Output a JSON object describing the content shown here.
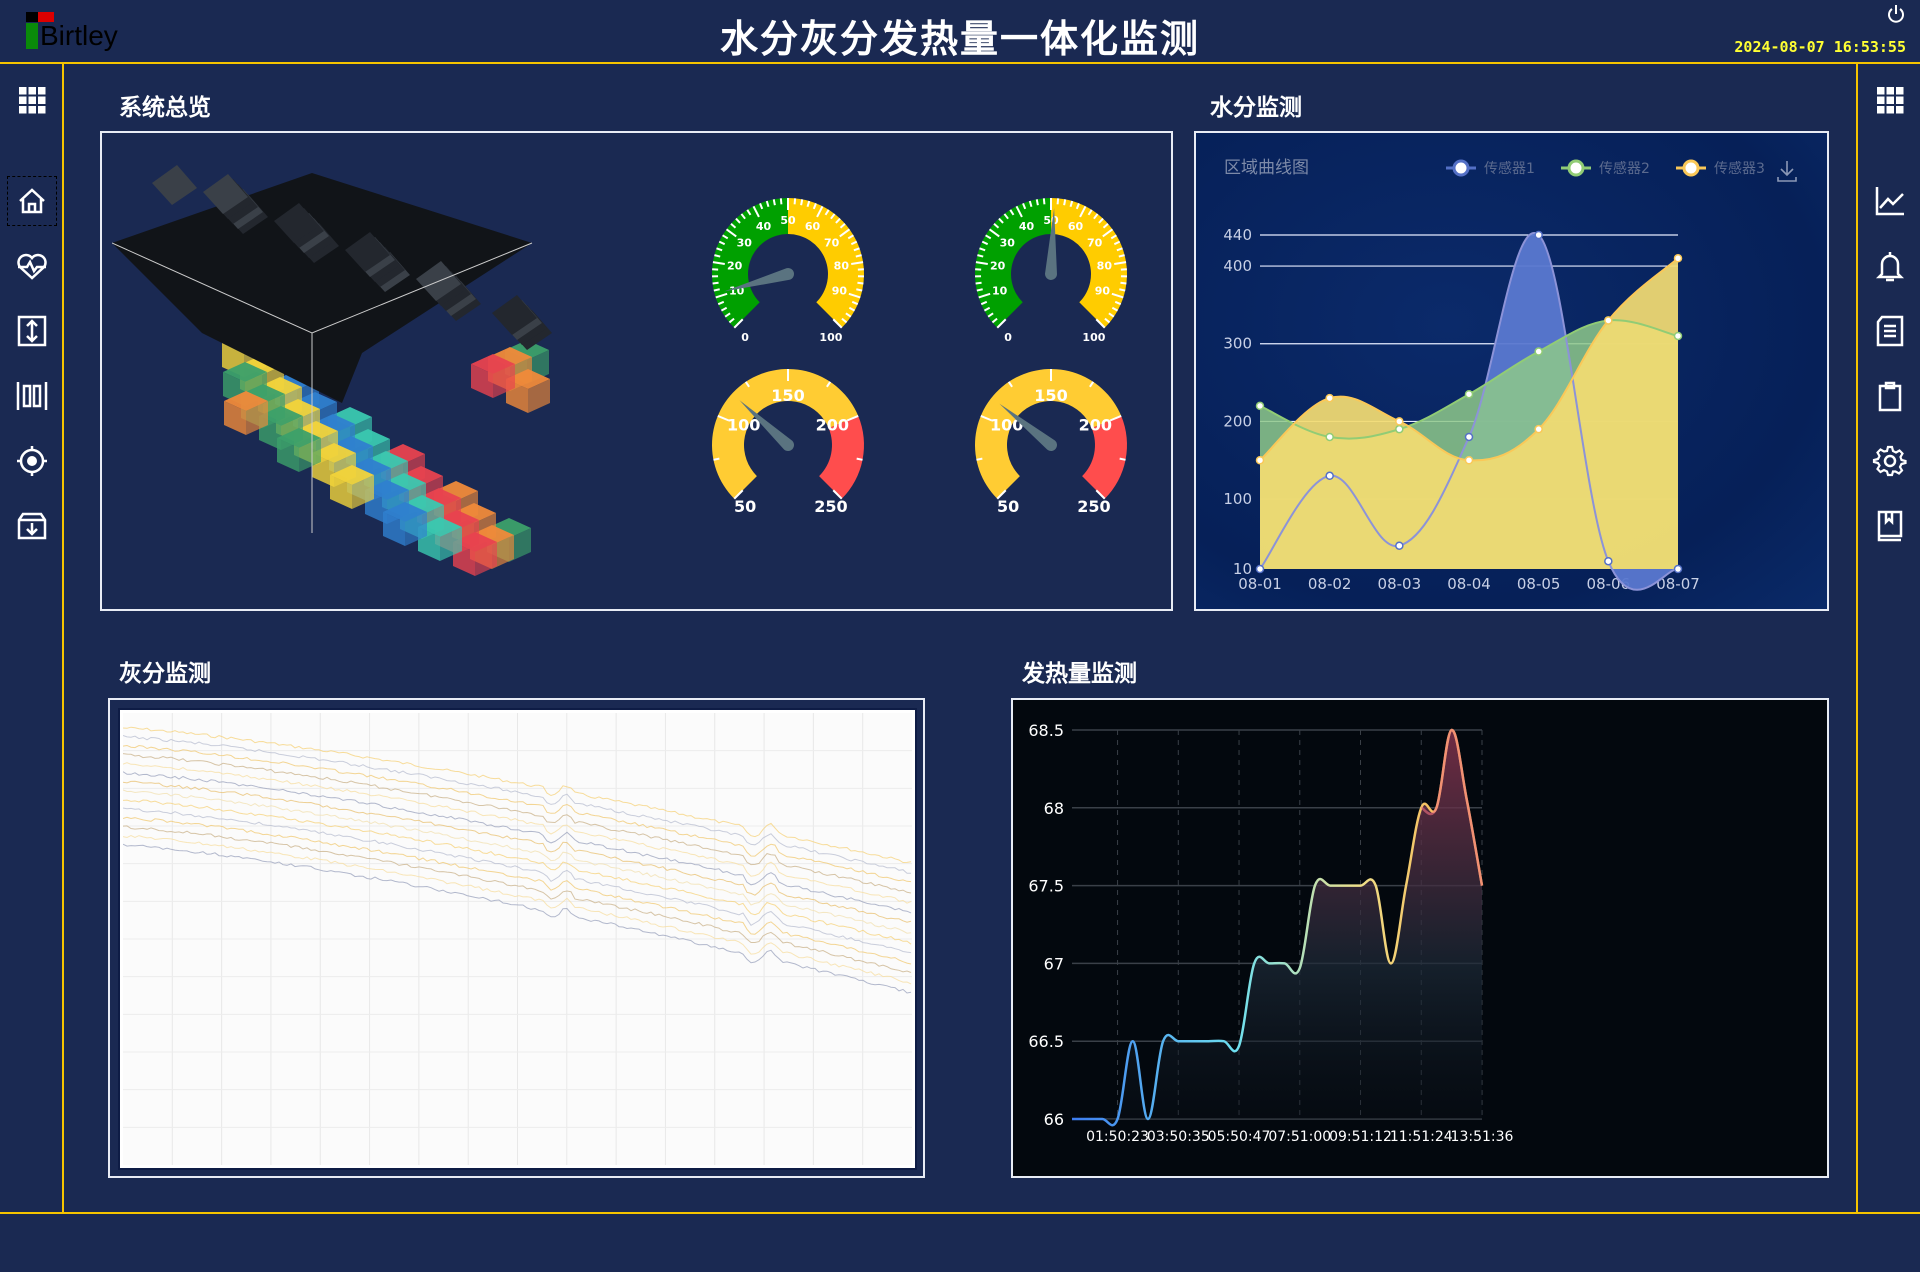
{
  "header": {
    "title": "水分灰分发热量一体化监测",
    "datetime": "2024-08-07 16:53:55",
    "logo_text": "Birtley",
    "power_icon": "power-icon"
  },
  "left_nav": [
    {
      "icon": "grid-icon"
    },
    {
      "icon": "home-icon",
      "selected": true
    },
    {
      "icon": "heartbeat-icon"
    },
    {
      "icon": "vertical-resize-icon"
    },
    {
      "icon": "columns-icon"
    },
    {
      "icon": "target-icon"
    },
    {
      "icon": "archive-download-icon"
    }
  ],
  "right_nav": [
    {
      "icon": "grid-icon"
    },
    {
      "icon": "line-chart-icon"
    },
    {
      "icon": "bell-icon"
    },
    {
      "icon": "document-icon"
    },
    {
      "icon": "clipboard-icon"
    },
    {
      "icon": "gear-icon"
    },
    {
      "icon": "book-icon"
    }
  ],
  "sections": {
    "overview": "系统总览",
    "moisture": "水分监测",
    "ash": "灰分监测",
    "heat": "发热量监测"
  },
  "gauges": [
    {
      "min": 0,
      "max": 100,
      "value": 11,
      "ticks": [
        0,
        10,
        20,
        30,
        40,
        50,
        60,
        70,
        80,
        90,
        100
      ],
      "bands": [
        {
          "to": 50,
          "color": "#00a000"
        },
        {
          "to": 100,
          "color": "#ffcc00"
        }
      ]
    },
    {
      "min": 0,
      "max": 100,
      "value": 51,
      "ticks": [
        0,
        10,
        20,
        30,
        40,
        50,
        60,
        70,
        80,
        90,
        100
      ],
      "bands": [
        {
          "to": 50,
          "color": "#00a000"
        },
        {
          "to": 100,
          "color": "#ffcc00"
        }
      ]
    },
    {
      "min": 50,
      "max": 250,
      "value": 115,
      "ticks": [
        50,
        100,
        150,
        200,
        250
      ],
      "bands": [
        {
          "to": 200,
          "color": "#ffcc33"
        },
        {
          "to": 250,
          "color": "#ff4d4d"
        }
      ]
    },
    {
      "min": 50,
      "max": 250,
      "value": 112,
      "ticks": [
        50,
        100,
        150,
        200,
        250
      ],
      "bands": [
        {
          "to": 200,
          "color": "#ffcc33"
        },
        {
          "to": 250,
          "color": "#ff4d4d"
        }
      ]
    }
  ],
  "chart_data": [
    {
      "type": "area",
      "title": "区域曲线图",
      "categories": [
        "08-01",
        "08-02",
        "08-03",
        "08-04",
        "08-05",
        "08-06",
        "08-07"
      ],
      "ylim": [
        10,
        440
      ],
      "yticks": [
        10,
        100,
        200,
        300,
        400,
        440
      ],
      "legend": "top-right",
      "download_icon": "download-icon",
      "series": [
        {
          "name": "传感器1",
          "color": "#5470c6",
          "values": [
            10,
            130,
            40,
            180,
            440,
            20,
            10
          ]
        },
        {
          "name": "传感器2",
          "color": "#91cc75",
          "values": [
            220,
            180,
            190,
            235,
            290,
            330,
            310
          ]
        },
        {
          "name": "传感器3",
          "color": "#fac858",
          "values": [
            150,
            230,
            200,
            150,
            190,
            330,
            410
          ]
        }
      ]
    },
    {
      "type": "line",
      "title": "",
      "xticks": [
        "01:50:23",
        "03:50:35",
        "05:50:47",
        "07:51:00",
        "09:51:12",
        "11:51:24",
        "13:51:36"
      ],
      "ylim": [
        66,
        68.5
      ],
      "yticks": [
        "66",
        "66.5",
        "67",
        "67.5",
        "68",
        "68.5"
      ],
      "grid": true,
      "values": [
        66,
        66,
        66,
        66,
        66.5,
        66,
        66.5,
        66.5,
        66.5,
        66.5,
        66.5,
        66.47,
        67,
        67,
        67,
        66.97,
        67.5,
        67.5,
        67.5,
        67.5,
        67.5,
        67,
        67.5,
        68,
        68,
        68.5,
        68.05,
        67.5
      ]
    },
    {
      "type": "line",
      "title": "",
      "grid": true,
      "series_count": 14
    }
  ]
}
